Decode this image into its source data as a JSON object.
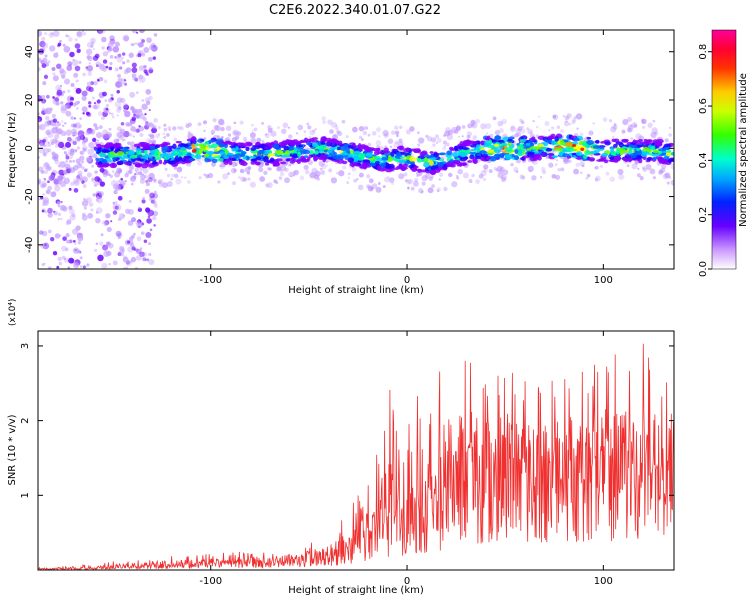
{
  "title": "C2E6.2022.340.01.07.G22",
  "colorbar": {
    "label": "Normalized spectral amplitude",
    "ticks": [
      "0.0",
      "0.2",
      "0.4",
      "0.6",
      "0.8"
    ],
    "range": [
      0.0,
      0.88
    ],
    "colors": [
      "#ffffff",
      "#8800ff",
      "#2200ff",
      "#0066ff",
      "#00ccff",
      "#00ff99",
      "#66ff00",
      "#ffff00",
      "#ff9900",
      "#ff0000",
      "#ff0088"
    ]
  },
  "chart_data": [
    {
      "type": "heatmap",
      "xlabel": "Height of straight line (km)",
      "ylabel": "Frequency (Hz)",
      "xlim": [
        -188,
        136
      ],
      "ylim": [
        -50,
        49
      ],
      "xticks": [
        "-100",
        "0",
        "100"
      ],
      "yticks": [
        "-40",
        "-20",
        "0",
        "20",
        "40"
      ],
      "ridge": {
        "description_points": [
          [
            -188,
            -3.0
          ],
          [
            -150,
            -3.0
          ],
          [
            -120,
            -2.5
          ],
          [
            -105,
            0.0
          ],
          [
            -90,
            -2.0
          ],
          [
            -70,
            -2.5
          ],
          [
            -55,
            -1.0
          ],
          [
            -45,
            0.0
          ],
          [
            -30,
            -2.0
          ],
          [
            -15,
            -5.0
          ],
          [
            0,
            -4.0
          ],
          [
            12,
            -6.0
          ],
          [
            25,
            -3.0
          ],
          [
            40,
            0.0
          ],
          [
            60,
            0.0
          ],
          [
            80,
            1.0
          ],
          [
            100,
            -1.0
          ],
          [
            120,
            -1.0
          ],
          [
            136,
            -2.0
          ]
        ],
        "peak_amplitude_regions": [
          [
            -110,
            -95
          ],
          [
            40,
            60
          ],
          [
            75,
            95
          ]
        ]
      }
    },
    {
      "type": "line",
      "xlabel": "Height of straight line (km)",
      "ylabel": "SNR (10 * v/v)",
      "yscale_label": "(x10⁴)",
      "xlim": [
        -188,
        136
      ],
      "ylim": [
        0,
        3.2
      ],
      "xticks": [
        "-100",
        "0",
        "100"
      ],
      "yticks": [
        "1",
        "2",
        "3"
      ],
      "color": "#f03030",
      "series": [
        {
          "x": [
            -188,
            -160,
            -140,
            -120,
            -100,
            -80,
            -60,
            -40,
            -30,
            -20,
            -10,
            0,
            10,
            20,
            30,
            40,
            50,
            60,
            70,
            80,
            90,
            100,
            110,
            120,
            136
          ],
          "y_mean": [
            0.01,
            0.02,
            0.05,
            0.07,
            0.09,
            0.11,
            0.14,
            0.18,
            0.3,
            0.45,
            0.65,
            0.8,
            0.9,
            1.1,
            1.25,
            1.4,
            1.45,
            1.45,
            1.4,
            1.4,
            1.5,
            1.5,
            1.45,
            1.4,
            1.3
          ],
          "y_max": [
            0.03,
            0.08,
            0.15,
            0.2,
            0.22,
            0.25,
            0.28,
            0.45,
            0.8,
            1.2,
            2.4,
            2.6,
            2.3,
            2.9,
            3.15,
            2.6,
            2.8,
            2.6,
            2.5,
            2.7,
            2.8,
            3.0,
            2.9,
            3.1,
            2.4
          ]
        }
      ]
    }
  ]
}
